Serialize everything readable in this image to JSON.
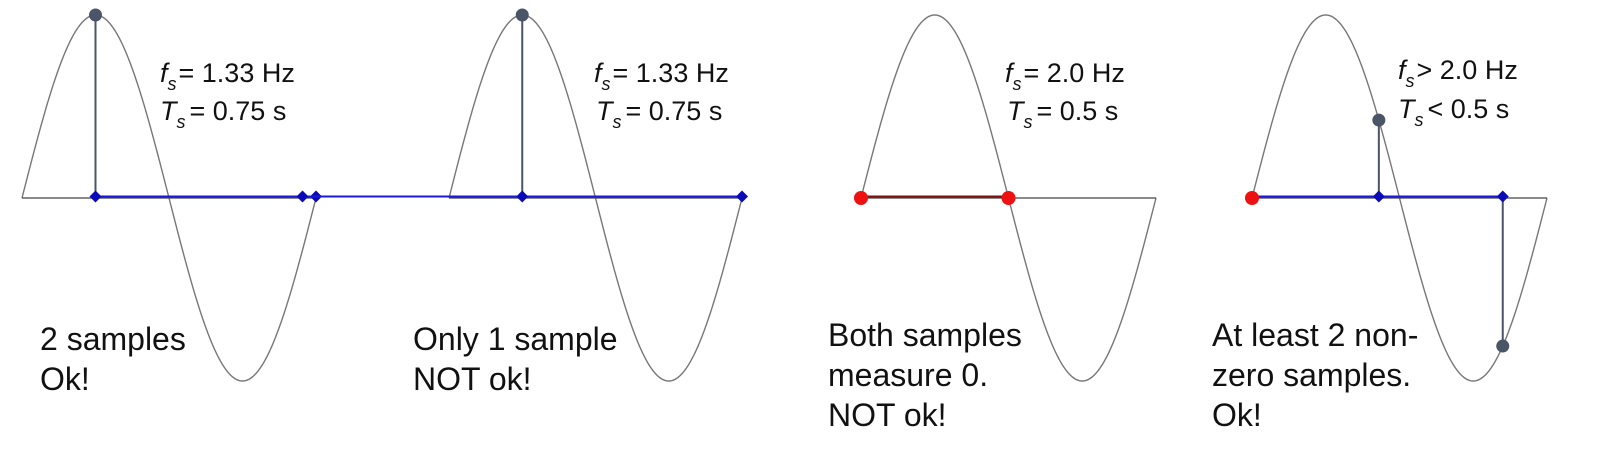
{
  "colors": {
    "sine": "#777777",
    "axis": "#444444",
    "sample_line": "#1a1ad6",
    "sample_marker": "#0a0ab8",
    "stem": "#4a5568",
    "stem_dot": "#4a5568",
    "zero_sample": "#ee1111",
    "text": "#111111"
  },
  "panels": [
    {
      "fs_value": "= 1.33 Hz",
      "ts_value": "= 0.75 s",
      "caption": [
        "2 samples",
        "Ok!"
      ],
      "sample_phases": [
        0.25,
        1.0
      ],
      "sample_kind": "nonzero"
    },
    {
      "fs_value": "= 1.33 Hz",
      "ts_value": "= 0.75 s",
      "caption": [
        "Only 1 sample",
        "NOT ok!"
      ],
      "sample_phases": [
        -0.5,
        0.25,
        1.0
      ],
      "sample_kind": "single"
    },
    {
      "fs_value": "= 2.0 Hz",
      "ts_value": "= 0.5 s",
      "caption": [
        "Both samples",
        "measure 0.",
        "NOT ok!"
      ],
      "sample_phases": [
        0.0,
        0.5
      ],
      "sample_kind": "zero"
    },
    {
      "fs_value": "> 2.0 Hz",
      "ts_value": "< 0.5 s",
      "caption": [
        "At least 2 non-",
        "zero samples.",
        "Ok!"
      ],
      "sample_phases": [
        0.0,
        0.43,
        0.85
      ],
      "sample_kind": "mixed"
    }
  ],
  "symbols": {
    "fs_base": "f",
    "fs_sub": "s",
    "ts_base": "T",
    "ts_sub": "s"
  }
}
